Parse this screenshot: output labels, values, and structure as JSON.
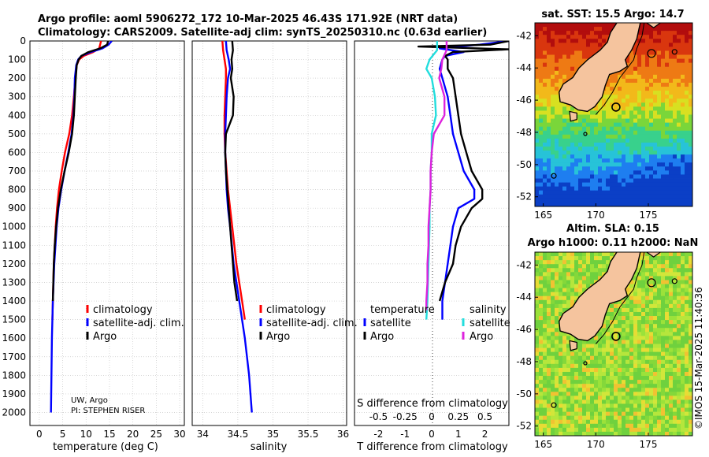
{
  "header": {
    "title_line1": "Argo profile: aoml 5906272_172 10-Mar-2025 46.43S 171.92E (NRT data)",
    "title_line2": "Climatology: CARS2009. Satellite-adj clim: synTS_20250310.nc (0.63d earlier)"
  },
  "depth_axis": {
    "ticks": [
      0,
      100,
      200,
      300,
      400,
      500,
      600,
      700,
      800,
      900,
      1000,
      1100,
      1200,
      1300,
      1400,
      1500,
      1600,
      1700,
      1800,
      1900,
      2000
    ],
    "range": [
      0,
      2070
    ]
  },
  "attribution": {
    "line1": "UW, Argo",
    "line2": "PI: STEPHEN RISER"
  },
  "colors": {
    "climatology": "#ff0000",
    "satellite": "#0000ff",
    "argo": "#000000",
    "sat_salinity": "#22dddd",
    "argo_salinity": "#dd22dd"
  },
  "chart_data": [
    {
      "type": "line",
      "id": "temperature",
      "xlabel": "temperature (deg C)",
      "xlim": [
        -2,
        31
      ],
      "xticks": [
        0,
        5,
        10,
        15,
        20,
        25,
        30
      ],
      "ylim": [
        0,
        2070
      ],
      "legend": [
        "climatology",
        "satellite-adj. clim.",
        "Argo"
      ],
      "series": [
        {
          "name": "climatology",
          "depth": [
            0,
            40,
            60,
            80,
            100,
            130,
            200,
            300,
            400,
            500,
            600,
            700,
            800,
            900,
            1000,
            1200,
            1400,
            1500
          ],
          "values": [
            13.2,
            12.8,
            11.5,
            9.5,
            8.5,
            8.0,
            7.7,
            7.4,
            7.0,
            6.4,
            5.5,
            4.8,
            4.2,
            3.8,
            3.5,
            3.1,
            2.9,
            2.8
          ]
        },
        {
          "name": "satellite-adj. clim.",
          "depth": [
            0,
            20,
            40,
            60,
            80,
            100,
            130,
            200,
            300,
            400,
            500,
            600,
            700,
            800,
            900,
            1000,
            1200,
            1400,
            1600,
            1800,
            2000
          ],
          "values": [
            15.5,
            14.8,
            13.5,
            11.0,
            9.0,
            8.3,
            7.9,
            7.6,
            7.5,
            7.3,
            6.9,
            6.2,
            5.4,
            4.7,
            4.1,
            3.7,
            3.2,
            2.9,
            2.7,
            2.6,
            2.5
          ]
        },
        {
          "name": "Argo",
          "depth": [
            0,
            20,
            40,
            60,
            80,
            100,
            130,
            200,
            300,
            400,
            500,
            600,
            700,
            800,
            900,
            1000,
            1100,
            1200,
            1300,
            1400
          ],
          "values": [
            14.7,
            14.5,
            13.0,
            10.5,
            9.0,
            8.4,
            8.0,
            7.8,
            7.6,
            7.4,
            7.0,
            6.3,
            5.4,
            4.6,
            4.0,
            3.6,
            3.3,
            3.1,
            3.0,
            2.9
          ]
        }
      ]
    },
    {
      "type": "line",
      "id": "salinity",
      "xlabel": "salinity",
      "xtick_labels": [
        "34",
        "34.5",
        "35",
        "35.5",
        "36"
      ],
      "xticks": [
        34,
        34.5,
        35,
        35.5,
        36
      ],
      "xlim": [
        33.85,
        36.05
      ],
      "ylim": [
        0,
        2070
      ],
      "legend": [
        "climatology",
        "satellite-adj. clim.",
        "Argo"
      ],
      "series": [
        {
          "name": "climatology",
          "depth": [
            0,
            50,
            100,
            150,
            200,
            300,
            400,
            500,
            600,
            800,
            1000,
            1200,
            1400,
            1500
          ],
          "values": [
            34.28,
            34.29,
            34.31,
            34.33,
            34.33,
            34.32,
            34.31,
            34.31,
            34.32,
            34.36,
            34.42,
            34.48,
            34.56,
            34.6
          ]
        },
        {
          "name": "satellite-adj. clim.",
          "depth": [
            0,
            50,
            100,
            150,
            200,
            300,
            400,
            500,
            600,
            700,
            800,
            900,
            1000,
            1200,
            1400,
            1600,
            1800,
            2000
          ],
          "values": [
            34.33,
            34.34,
            34.37,
            34.39,
            34.36,
            34.34,
            34.33,
            34.32,
            34.32,
            34.33,
            34.34,
            34.36,
            34.39,
            34.44,
            34.52,
            34.6,
            34.66,
            34.7
          ]
        },
        {
          "name": "Argo",
          "depth": [
            0,
            50,
            100,
            150,
            200,
            300,
            400,
            500,
            600,
            700,
            800,
            900,
            1000,
            1100,
            1200,
            1300,
            1400
          ],
          "values": [
            34.42,
            34.43,
            34.41,
            34.42,
            34.4,
            34.44,
            34.43,
            34.33,
            34.32,
            34.33,
            34.35,
            34.37,
            34.39,
            34.41,
            34.43,
            34.45,
            34.49
          ]
        }
      ]
    },
    {
      "type": "line",
      "id": "difference",
      "xlabel": "T difference from climatology",
      "xlabel_top": "S difference from climatology",
      "xticks": [
        -2,
        -1,
        0,
        1,
        2
      ],
      "xtick_labels": [
        "-2",
        "-1",
        "0",
        "1",
        "2"
      ],
      "s_xtick_labels": [
        "-0.5",
        "-0.25",
        "0",
        "0.25",
        "0.5"
      ],
      "xlim": [
        -2.9,
        2.9
      ],
      "ylim": [
        0,
        2070
      ],
      "legend_temperature": [
        "temperature",
        "satellite",
        "Argo"
      ],
      "legend_salinity": [
        "salinity",
        "satellite",
        "Argo"
      ],
      "series": [
        {
          "name": "temperature satellite",
          "depth": [
            0,
            20,
            40,
            60,
            80,
            100,
            150,
            200,
            300,
            400,
            500,
            600,
            700,
            800,
            850,
            900,
            1000,
            1100,
            1200,
            1300,
            1400,
            1500
          ],
          "values": [
            2.9,
            1.8,
            0.3,
            1.2,
            0.5,
            0.4,
            0.3,
            0.4,
            0.6,
            0.7,
            0.8,
            1.0,
            1.2,
            1.6,
            1.6,
            1.0,
            0.8,
            0.7,
            0.6,
            0.5,
            0.4,
            0.4
          ]
        },
        {
          "name": "temperature Argo",
          "depth": [
            0,
            20,
            30,
            45,
            60,
            80,
            100,
            150,
            200,
            300,
            400,
            500,
            600,
            700,
            800,
            850,
            900,
            1000,
            1100,
            1200,
            1300,
            1400
          ],
          "values": [
            2.9,
            2.2,
            -0.5,
            2.9,
            0.8,
            0.5,
            0.6,
            0.6,
            0.8,
            0.9,
            1.0,
            1.1,
            1.3,
            1.5,
            1.9,
            1.9,
            1.5,
            1.1,
            0.9,
            0.8,
            0.5,
            0.3
          ]
        },
        {
          "name": "salinity satellite",
          "depth": [
            0,
            50,
            100,
            150,
            200,
            300,
            400,
            500,
            600,
            700,
            800,
            900,
            1000,
            1200,
            1400,
            1500
          ],
          "values": [
            0.05,
            0.05,
            -0.02,
            -0.05,
            0.0,
            0.03,
            0.04,
            0.0,
            0.0,
            -0.01,
            -0.01,
            -0.02,
            -0.02,
            -0.03,
            -0.04,
            -0.05
          ]
        },
        {
          "name": "salinity Argo",
          "depth": [
            0,
            50,
            100,
            150,
            200,
            300,
            400,
            500,
            600,
            700,
            800,
            900,
            1000,
            1100,
            1200,
            1300,
            1400,
            1450
          ],
          "values": [
            0.14,
            0.14,
            0.1,
            0.09,
            0.07,
            0.12,
            0.12,
            0.02,
            0.0,
            -0.01,
            -0.01,
            -0.02,
            -0.03,
            -0.03,
            -0.04,
            -0.04,
            -0.05,
            -0.05
          ]
        }
      ]
    }
  ],
  "maps": [
    {
      "title": "sat. SST: 15.5 Argo: 14.7",
      "lon_ticks": [
        "165",
        "170",
        "175"
      ],
      "lat_ticks": [
        "-42",
        "-44",
        "-46",
        "-48",
        "-50",
        "-52"
      ],
      "kind": "sst"
    },
    {
      "title_line1": "Altim. SLA: 0.15",
      "title_line2": "Argo h1000: 0.11 h2000: NaN",
      "lon_ticks": [
        "165",
        "170",
        "175"
      ],
      "lat_ticks": [
        "-42",
        "-44",
        "-46",
        "-48",
        "-50",
        "-52"
      ],
      "kind": "sla"
    }
  ],
  "timestamp": "©IMOS 15-Mar-2025 11:40:36"
}
